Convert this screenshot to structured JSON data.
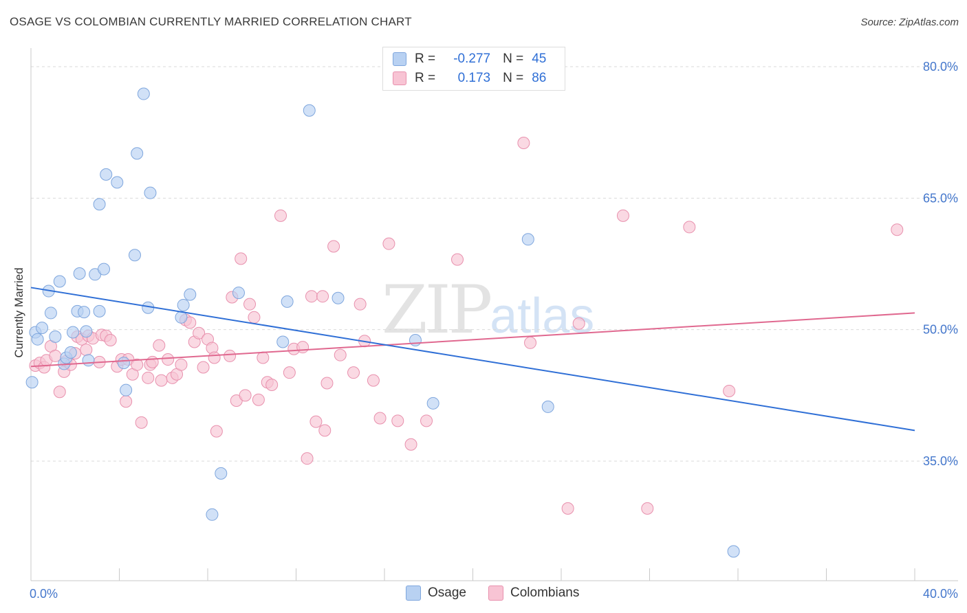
{
  "title": "OSAGE VS COLOMBIAN CURRENTLY MARRIED CORRELATION CHART",
  "source": "Source: ZipAtlas.com",
  "watermark": {
    "zip": "ZIP",
    "atlas": "atlas"
  },
  "legend": [
    {
      "r_label": "R =",
      "r_value": "-0.277",
      "n_label": "N =",
      "n_value": "45"
    },
    {
      "r_label": "R =",
      "r_value": "0.173",
      "n_label": "N =",
      "n_value": "86"
    }
  ],
  "bottom_legend": [
    "Osage",
    "Colombians"
  ],
  "colors": {
    "osage_fill": "#b8d1f2",
    "osage_stroke": "#7ea6dd",
    "osage_line": "#2f6fd6",
    "colombian_fill": "#f8c4d4",
    "colombian_stroke": "#e890ad",
    "colombian_line": "#e0688f",
    "tick_text": "#4477cc",
    "grid": "#d9d9d9"
  },
  "chart_data": {
    "type": "scatter",
    "title": "OSAGE VS COLOMBIAN CURRENTLY MARRIED CORRELATION CHART",
    "xlabel": "",
    "ylabel": "Currently Married",
    "xlim": [
      0,
      40
    ],
    "ylim": [
      20,
      83
    ],
    "x_tick_labels": [
      {
        "value": 0,
        "label": "0.0%"
      },
      {
        "value": 40,
        "label": "40.0%"
      }
    ],
    "y_tick_labels": [
      {
        "value": 80,
        "label": "80.0%"
      },
      {
        "value": 65,
        "label": "65.0%"
      },
      {
        "value": 50,
        "label": "50.0%"
      },
      {
        "value": 35,
        "label": "35.0%"
      }
    ],
    "series": [
      {
        "name": "Osage",
        "r": -0.277,
        "n": 45,
        "trend": [
          [
            0,
            54.8
          ],
          [
            40,
            38.5
          ]
        ],
        "points": [
          [
            0.05,
            44.0
          ],
          [
            0.2,
            49.7
          ],
          [
            0.3,
            48.9
          ],
          [
            0.5,
            50.2
          ],
          [
            0.8,
            54.4
          ],
          [
            0.9,
            51.9
          ],
          [
            1.1,
            49.2
          ],
          [
            1.3,
            55.5
          ],
          [
            1.5,
            46.1
          ],
          [
            1.6,
            46.8
          ],
          [
            1.8,
            47.4
          ],
          [
            1.9,
            49.7
          ],
          [
            2.1,
            52.1
          ],
          [
            2.2,
            56.4
          ],
          [
            2.4,
            52.0
          ],
          [
            2.5,
            49.8
          ],
          [
            2.6,
            46.5
          ],
          [
            2.9,
            56.3
          ],
          [
            3.1,
            52.1
          ],
          [
            3.3,
            56.9
          ],
          [
            3.4,
            67.7
          ],
          [
            3.9,
            66.8
          ],
          [
            3.1,
            64.3
          ],
          [
            4.2,
            46.2
          ],
          [
            4.3,
            43.1
          ],
          [
            4.7,
            58.5
          ],
          [
            4.8,
            70.1
          ],
          [
            5.1,
            76.9
          ],
          [
            5.3,
            52.5
          ],
          [
            5.4,
            65.6
          ],
          [
            6.8,
            51.4
          ],
          [
            6.9,
            52.8
          ],
          [
            7.2,
            54.0
          ],
          [
            8.2,
            28.9
          ],
          [
            8.6,
            33.6
          ],
          [
            9.4,
            54.2
          ],
          [
            11.4,
            48.6
          ],
          [
            11.6,
            53.2
          ],
          [
            12.6,
            75.0
          ],
          [
            13.9,
            53.6
          ],
          [
            17.4,
            48.8
          ],
          [
            18.2,
            41.6
          ],
          [
            22.5,
            60.3
          ],
          [
            23.4,
            41.2
          ],
          [
            31.8,
            24.7
          ]
        ]
      },
      {
        "name": "Colombians",
        "r": 0.173,
        "n": 86,
        "trend": [
          [
            0,
            45.8
          ],
          [
            40,
            51.9
          ]
        ],
        "points": [
          [
            0.2,
            45.9
          ],
          [
            0.4,
            46.2
          ],
          [
            0.6,
            45.7
          ],
          [
            0.7,
            46.5
          ],
          [
            0.9,
            48.1
          ],
          [
            1.1,
            47.0
          ],
          [
            1.3,
            42.9
          ],
          [
            1.5,
            45.2
          ],
          [
            1.6,
            46.4
          ],
          [
            1.8,
            46.0
          ],
          [
            2.0,
            47.3
          ],
          [
            2.1,
            49.2
          ],
          [
            2.3,
            48.9
          ],
          [
            2.5,
            47.7
          ],
          [
            2.6,
            49.3
          ],
          [
            2.8,
            49.0
          ],
          [
            3.1,
            46.3
          ],
          [
            3.2,
            49.4
          ],
          [
            3.4,
            49.3
          ],
          [
            3.6,
            48.8
          ],
          [
            3.9,
            45.8
          ],
          [
            4.1,
            46.6
          ],
          [
            4.3,
            41.8
          ],
          [
            4.4,
            46.6
          ],
          [
            4.6,
            44.9
          ],
          [
            4.8,
            46.0
          ],
          [
            5.0,
            39.4
          ],
          [
            5.3,
            44.5
          ],
          [
            5.4,
            46.0
          ],
          [
            5.5,
            46.3
          ],
          [
            5.8,
            48.2
          ],
          [
            5.9,
            44.2
          ],
          [
            6.2,
            46.6
          ],
          [
            6.4,
            44.5
          ],
          [
            6.6,
            44.9
          ],
          [
            6.8,
            46.0
          ],
          [
            7.0,
            51.1
          ],
          [
            7.2,
            50.8
          ],
          [
            7.4,
            48.6
          ],
          [
            7.6,
            49.6
          ],
          [
            7.8,
            45.7
          ],
          [
            8.0,
            48.9
          ],
          [
            8.2,
            47.9
          ],
          [
            8.3,
            46.8
          ],
          [
            8.4,
            38.4
          ],
          [
            9.0,
            47.0
          ],
          [
            9.1,
            53.7
          ],
          [
            9.3,
            41.9
          ],
          [
            9.5,
            58.1
          ],
          [
            9.7,
            42.5
          ],
          [
            9.9,
            52.9
          ],
          [
            10.1,
            51.4
          ],
          [
            10.3,
            42.0
          ],
          [
            10.5,
            46.8
          ],
          [
            10.7,
            44.0
          ],
          [
            10.9,
            43.7
          ],
          [
            11.3,
            63.0
          ],
          [
            11.7,
            45.1
          ],
          [
            11.9,
            47.8
          ],
          [
            12.3,
            48.0
          ],
          [
            12.5,
            35.3
          ],
          [
            12.7,
            53.8
          ],
          [
            12.9,
            39.5
          ],
          [
            13.2,
            53.8
          ],
          [
            13.3,
            38.5
          ],
          [
            13.4,
            43.9
          ],
          [
            13.7,
            59.5
          ],
          [
            14.0,
            47.1
          ],
          [
            14.6,
            45.1
          ],
          [
            14.9,
            52.9
          ],
          [
            15.1,
            48.7
          ],
          [
            15.5,
            44.2
          ],
          [
            15.8,
            39.9
          ],
          [
            16.2,
            59.8
          ],
          [
            16.6,
            39.6
          ],
          [
            17.2,
            36.9
          ],
          [
            17.9,
            39.6
          ],
          [
            19.3,
            58.0
          ],
          [
            22.3,
            71.3
          ],
          [
            22.6,
            48.5
          ],
          [
            24.3,
            29.6
          ],
          [
            24.8,
            50.7
          ],
          [
            26.8,
            63.0
          ],
          [
            27.9,
            29.6
          ],
          [
            29.8,
            61.7
          ],
          [
            31.6,
            43.0
          ],
          [
            39.2,
            61.4
          ]
        ]
      }
    ]
  }
}
